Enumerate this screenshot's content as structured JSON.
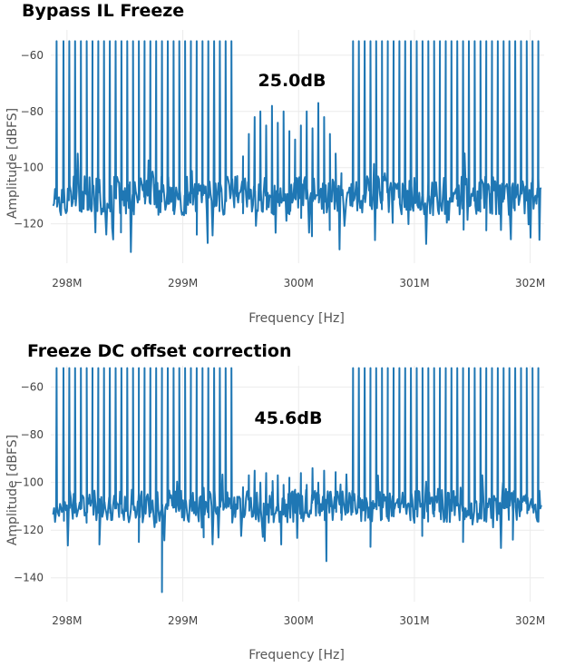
{
  "chart_data": [
    {
      "type": "line",
      "title": "Bypass IL Freeze",
      "annotation": "25.0dB",
      "xlabel": "Frequency [Hz]",
      "ylabel": "Amplitude [dBFS]",
      "xlim": [
        297.86,
        302.12
      ],
      "ylim": [
        -134,
        -51
      ],
      "xticks": [
        298,
        299,
        300,
        301,
        302
      ],
      "xtick_labels": [
        "298M",
        "299M",
        "300M",
        "301M",
        "302M"
      ],
      "yticks": [
        -120,
        -100,
        -80,
        -60
      ],
      "grid": true,
      "series": [
        {
          "tones_left_x": [
            297.91,
            297.97,
            298.02,
            298.07,
            298.12,
            298.17,
            298.22,
            298.27,
            298.32,
            298.37,
            298.42,
            298.47,
            298.52,
            298.57,
            298.62,
            298.67,
            298.72,
            298.77,
            298.82,
            298.87,
            298.92,
            298.97,
            299.02,
            299.07,
            299.12,
            299.17,
            299.22,
            299.27,
            299.32,
            299.37,
            299.42
          ],
          "tones_right_x": [
            300.47,
            300.52,
            300.57,
            300.62,
            300.67,
            300.72,
            300.77,
            300.82,
            300.87,
            300.92,
            300.97,
            301.02,
            301.07,
            301.12,
            301.17,
            301.22,
            301.27,
            301.32,
            301.37,
            301.42,
            301.47,
            301.52,
            301.57,
            301.62,
            301.67,
            301.72,
            301.77,
            301.82,
            301.87,
            301.92,
            301.97,
            302.02,
            302.07
          ],
          "tone_level": -55,
          "noise_level": -110,
          "residual_x": [
            299.47,
            299.52,
            299.57,
            299.62,
            299.67,
            299.72,
            299.77,
            299.82,
            299.87,
            299.92,
            299.97,
            300.02,
            300.07,
            300.12,
            300.17,
            300.22,
            300.27,
            300.32,
            300.37
          ],
          "residual_y": [
            -103,
            -96,
            -88,
            -82,
            -80,
            -85,
            -78,
            -84,
            -80,
            -87,
            -90,
            -85,
            -80,
            -86,
            -77,
            -82,
            -88,
            -95,
            -102
          ]
        }
      ]
    },
    {
      "type": "line",
      "title": "Freeze DC offset correction",
      "annotation": "45.6dB",
      "xlabel": "Frequency [Hz]",
      "ylabel": "Amplitude [dBFS]",
      "xlim": [
        297.86,
        302.12
      ],
      "ylim": [
        -150,
        -51
      ],
      "xticks": [
        298,
        299,
        300,
        301,
        302
      ],
      "xtick_labels": [
        "298M",
        "299M",
        "300M",
        "301M",
        "302M"
      ],
      "yticks": [
        -140,
        -120,
        -100,
        -80,
        -60
      ],
      "grid": true,
      "series": [
        {
          "tones_left_x": [
            297.91,
            297.97,
            298.02,
            298.07,
            298.12,
            298.17,
            298.22,
            298.27,
            298.32,
            298.37,
            298.42,
            298.47,
            298.52,
            298.57,
            298.62,
            298.67,
            298.72,
            298.77,
            298.82,
            298.87,
            298.92,
            298.97,
            299.02,
            299.07,
            299.12,
            299.17,
            299.22,
            299.27,
            299.32,
            299.37,
            299.42
          ],
          "tones_right_x": [
            300.47,
            300.52,
            300.57,
            300.62,
            300.67,
            300.72,
            300.77,
            300.82,
            300.87,
            300.92,
            300.97,
            301.02,
            301.07,
            301.12,
            301.17,
            301.22,
            301.27,
            301.32,
            301.37,
            301.42,
            301.47,
            301.52,
            301.57,
            301.62,
            301.67,
            301.72,
            301.77,
            301.82,
            301.87,
            301.92,
            301.97,
            302.02,
            302.07
          ],
          "tone_level": -52,
          "noise_level": -110,
          "residual_x": [
            299.47,
            299.52,
            299.57,
            299.62,
            299.67,
            299.72,
            299.77,
            299.82,
            299.87,
            299.92,
            299.97,
            300.02,
            300.07,
            300.12,
            300.17,
            300.22,
            300.27,
            300.32,
            300.37
          ],
          "residual_y": [
            -106,
            -102,
            -97,
            -95,
            -100,
            -96,
            -104,
            -97,
            -101,
            -98,
            -103,
            -96,
            -101,
            -94,
            -100,
            -95,
            -104,
            -99,
            -106
          ],
          "spikes_down": [
            [
              298.28,
              -126
            ],
            [
              298.62,
              -125
            ],
            [
              298.82,
              -146
            ],
            [
              299.18,
              -123
            ],
            [
              299.85,
              -126
            ],
            [
              300.24,
              -133
            ],
            [
              300.62,
              -127
            ],
            [
              301.42,
              -125
            ],
            [
              301.85,
              -124
            ]
          ]
        }
      ]
    }
  ]
}
